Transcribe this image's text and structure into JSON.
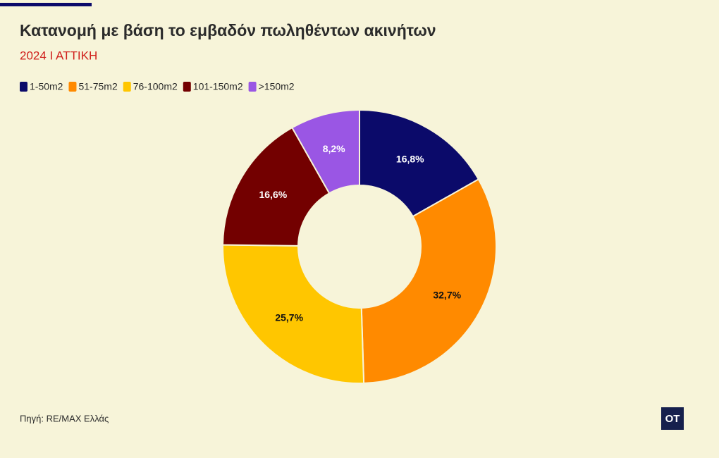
{
  "chart_data": {
    "type": "pie",
    "title": "Κατανομή με βάση το εμβαδόν πωληθέντων ακινήτων",
    "subtitle": "2024 Ι ΑΤΤΙΚΗ",
    "categories": [
      "1-50m2",
      "51-75m2",
      "76-100m2",
      "101-150m2",
      ">150m2"
    ],
    "values": [
      16.8,
      32.7,
      25.7,
      16.6,
      8.2
    ],
    "value_labels": [
      "16,8%",
      "32,7%",
      "25,7%",
      "16,6%",
      "8,2%"
    ],
    "colors": [
      "#0b0a6a",
      "#ff8a00",
      "#ffc600",
      "#730000",
      "#9a56e4"
    ],
    "donut": true,
    "source": "Πηγή: RE/MAX Ελλάς",
    "logo": "OT"
  }
}
